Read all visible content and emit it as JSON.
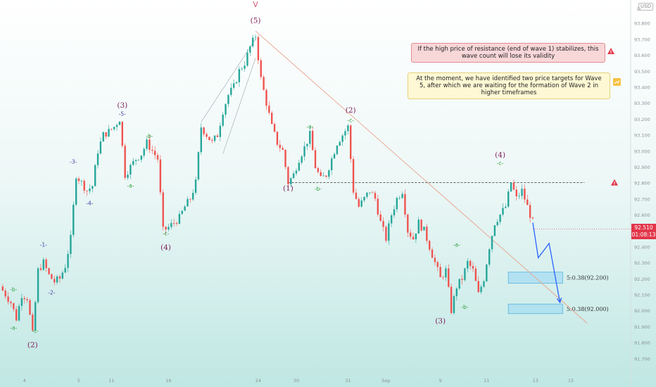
{
  "header": {
    "currency_badge": "USD",
    "axis_prefix": "D"
  },
  "notes": {
    "red": "If the high price of resistance (end of wave 1) stabilizes, this wave count will lose its validity",
    "yellow": "At the moment, we have identified two price targets for Wave 5, after which we are waiting for the formation of Wave 2 in higher timeframes"
  },
  "price_tag": {
    "price": "92.510",
    "countdown": "01:08:13"
  },
  "targets": [
    {
      "label": "5:0.38(92.200)",
      "low": 92.17,
      "high": 92.24,
      "x0": 93.5,
      "x1": 103.5,
      "label_x": 104.2
    },
    {
      "label": "5:0.38(92.000)",
      "low": 91.98,
      "high": 92.04,
      "x0": 93.5,
      "x1": 103.5,
      "label_x": 104.2
    }
  ],
  "resistance": {
    "price": 92.8,
    "x0": 53,
    "x1": 107.5
  },
  "colors": {
    "up": "#26a69a",
    "down": "#ef5350",
    "wave_label": "#7b1e5a",
    "sub_green": "#2e9e3e",
    "sub_blue": "#3f3fa6",
    "projection": "#2962ff",
    "trend": "#e9a38d"
  },
  "chart_data": {
    "type": "candlestick",
    "title": "",
    "xlabel": "",
    "ylabel": "",
    "ylim": [
      91.6,
      93.9
    ],
    "xlim": [
      0,
      116
    ],
    "price_axis_ticks": [
      "93.800",
      "93.700",
      "93.600",
      "93.500",
      "93.400",
      "93.300",
      "93.200",
      "93.100",
      "93.000",
      "92.900",
      "92.800",
      "92.700",
      "92.600",
      "92.500",
      "92.400",
      "92.300",
      "92.200",
      "92.100",
      "92.000",
      "91.900",
      "91.800",
      "91.700"
    ],
    "time_axis_labels": [
      {
        "x": 4.5,
        "text": "4"
      },
      {
        "x": 14.5,
        "text": "5"
      },
      {
        "x": 20.5,
        "text": "11"
      },
      {
        "x": 31,
        "text": "16"
      },
      {
        "x": 47.5,
        "text": "24"
      },
      {
        "x": 54.5,
        "text": "30"
      },
      {
        "x": 64,
        "text": "31"
      },
      {
        "x": 71,
        "text": "Sep"
      },
      {
        "x": 81,
        "text": "9"
      },
      {
        "x": 89.5,
        "text": "11"
      },
      {
        "x": 98.5,
        "text": "13"
      },
      {
        "x": 105,
        "text": "15"
      }
    ],
    "close_path": [
      [
        0,
        92.15
      ],
      [
        2,
        92.05
      ],
      [
        3,
        91.95
      ],
      [
        4,
        92.1
      ],
      [
        5,
        92.08
      ],
      [
        6,
        91.85
      ],
      [
        7,
        92.25
      ],
      [
        8,
        92.3
      ],
      [
        9,
        92.22
      ],
      [
        10,
        92.18
      ],
      [
        11,
        92.2
      ],
      [
        12,
        92.28
      ],
      [
        13,
        92.45
      ],
      [
        14,
        92.85
      ],
      [
        15,
        92.8
      ],
      [
        16,
        92.75
      ],
      [
        17,
        92.78
      ],
      [
        18,
        93.0
      ],
      [
        19,
        93.1
      ],
      [
        20,
        93.12
      ],
      [
        21,
        93.15
      ],
      [
        22,
        93.2
      ],
      [
        23,
        92.85
      ],
      [
        24,
        92.9
      ],
      [
        25,
        92.95
      ],
      [
        26,
        92.98
      ],
      [
        27,
        93.05
      ],
      [
        28,
        93.0
      ],
      [
        29,
        92.95
      ],
      [
        30,
        92.5
      ],
      [
        31,
        92.52
      ],
      [
        32,
        92.55
      ],
      [
        33,
        92.58
      ],
      [
        34,
        92.65
      ],
      [
        35,
        92.7
      ],
      [
        36,
        92.8
      ],
      [
        37,
        93.15
      ],
      [
        38,
        93.1
      ],
      [
        39,
        93.05
      ],
      [
        40,
        93.1
      ],
      [
        41,
        93.25
      ],
      [
        42,
        93.35
      ],
      [
        43,
        93.4
      ],
      [
        44,
        93.5
      ],
      [
        45,
        93.55
      ],
      [
        46,
        93.65
      ],
      [
        47,
        93.72
      ],
      [
        48,
        93.45
      ],
      [
        49,
        93.3
      ],
      [
        50,
        93.15
      ],
      [
        51,
        93.05
      ],
      [
        52,
        93.0
      ],
      [
        53,
        92.8
      ],
      [
        54,
        92.85
      ],
      [
        55,
        92.95
      ],
      [
        56,
        93.02
      ],
      [
        57,
        93.1
      ],
      [
        58,
        92.9
      ],
      [
        59,
        92.82
      ],
      [
        60,
        92.85
      ],
      [
        61,
        92.95
      ],
      [
        62,
        93.05
      ],
      [
        63,
        93.1
      ],
      [
        64,
        93.15
      ],
      [
        65,
        92.75
      ],
      [
        66,
        92.65
      ],
      [
        67,
        92.7
      ],
      [
        68,
        92.75
      ],
      [
        69,
        92.7
      ],
      [
        70,
        92.55
      ],
      [
        71,
        92.45
      ],
      [
        72,
        92.6
      ],
      [
        73,
        92.7
      ],
      [
        74,
        92.75
      ],
      [
        75,
        92.5
      ],
      [
        76,
        92.45
      ],
      [
        77,
        92.55
      ],
      [
        78,
        92.5
      ],
      [
        79,
        92.4
      ],
      [
        80,
        92.3
      ],
      [
        81,
        92.2
      ],
      [
        82,
        92.25
      ],
      [
        83,
        92.0
      ],
      [
        84,
        92.15
      ],
      [
        85,
        92.2
      ],
      [
        86,
        92.3
      ],
      [
        87,
        92.25
      ],
      [
        88,
        92.1
      ],
      [
        89,
        92.2
      ],
      [
        90,
        92.4
      ],
      [
        91,
        92.55
      ],
      [
        92,
        92.6
      ],
      [
        93,
        92.65
      ],
      [
        94,
        92.8
      ],
      [
        95,
        92.7
      ],
      [
        96,
        92.75
      ],
      [
        97,
        92.65
      ],
      [
        98,
        92.55
      ]
    ],
    "projection": [
      [
        98,
        92.55
      ],
      [
        99,
        92.33
      ],
      [
        101,
        92.42
      ],
      [
        103,
        92.05
      ]
    ],
    "trend_line": [
      [
        47,
        93.75
      ],
      [
        108,
        91.92
      ]
    ],
    "channel_lines": [
      [
        [
          37,
          93.18
        ],
        [
          47,
          93.7
        ]
      ],
      [
        [
          41,
          92.98
        ],
        [
          47,
          93.58
        ]
      ]
    ],
    "wave_labels": [
      {
        "x": 6,
        "price": 91.77,
        "text": "(2)",
        "kind": "major"
      },
      {
        "x": 22.5,
        "price": 93.27,
        "text": "(3)",
        "kind": "major"
      },
      {
        "x": 30.5,
        "price": 92.38,
        "text": "(4)",
        "kind": "major"
      },
      {
        "x": 47,
        "price": 93.8,
        "text": "(5)",
        "kind": "major"
      },
      {
        "x": 47,
        "price": 93.9,
        "text": "V",
        "kind": "degree"
      },
      {
        "x": 53,
        "price": 92.75,
        "text": "(1)",
        "kind": "major"
      },
      {
        "x": 64.5,
        "price": 93.24,
        "text": "(2)",
        "kind": "major"
      },
      {
        "x": 81,
        "price": 91.92,
        "text": "(3)",
        "kind": "major"
      },
      {
        "x": 92,
        "price": 92.96,
        "text": "(4)",
        "kind": "major"
      },
      {
        "x": 2.5,
        "price": 92.12,
        "text": "-b-",
        "kind": "sub_green"
      },
      {
        "x": 2.5,
        "price": 91.88,
        "text": "-a-",
        "kind": "sub_green"
      },
      {
        "x": 6.5,
        "price": 91.86,
        "text": "-c-",
        "kind": "sub_green"
      },
      {
        "x": 8,
        "price": 92.4,
        "text": "-1-",
        "kind": "sub_blue"
      },
      {
        "x": 9.5,
        "price": 92.1,
        "text": "-2-",
        "kind": "sub_blue"
      },
      {
        "x": 13.5,
        "price": 92.92,
        "text": "-3-",
        "kind": "sub_blue"
      },
      {
        "x": 16.5,
        "price": 92.66,
        "text": "-4-",
        "kind": "sub_blue"
      },
      {
        "x": 22.5,
        "price": 93.22,
        "text": "-5-",
        "kind": "sub_blue"
      },
      {
        "x": 24,
        "price": 92.77,
        "text": "-a-",
        "kind": "sub_green"
      },
      {
        "x": 27.5,
        "price": 93.08,
        "text": "-b-",
        "kind": "sub_green"
      },
      {
        "x": 30.5,
        "price": 92.47,
        "text": "-c-",
        "kind": "sub_green"
      },
      {
        "x": 57,
        "price": 93.14,
        "text": "-a-",
        "kind": "sub_green"
      },
      {
        "x": 58.5,
        "price": 92.75,
        "text": "-b-",
        "kind": "sub_green"
      },
      {
        "x": 64.5,
        "price": 93.18,
        "text": "-c-",
        "kind": "sub_green"
      },
      {
        "x": 84,
        "price": 92.4,
        "text": "-a-",
        "kind": "sub_green"
      },
      {
        "x": 85.5,
        "price": 92.01,
        "text": "-b-",
        "kind": "sub_green"
      },
      {
        "x": 92,
        "price": 92.91,
        "text": "-c-",
        "kind": "sub_green"
      }
    ]
  }
}
